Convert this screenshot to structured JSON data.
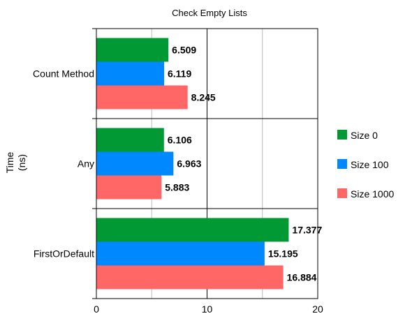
{
  "chart_data": {
    "type": "bar",
    "orientation": "horizontal",
    "title": "Check Empty Lists",
    "ylabel": "Time (ns)",
    "ylabel_lines": [
      "Time",
      "(ns)"
    ],
    "xlabel": "",
    "categories": [
      "Count Method",
      "Any",
      "FirstOrDefault"
    ],
    "series": [
      {
        "name": "Size 0",
        "color": "#009933",
        "values": [
          6.509,
          6.106,
          17.377
        ]
      },
      {
        "name": "Size 100",
        "color": "#0088ff",
        "values": [
          6.119,
          6.963,
          15.195
        ]
      },
      {
        "name": "Size 1000",
        "color": "#ff6666",
        "values": [
          8.245,
          5.883,
          16.884
        ]
      }
    ],
    "xlim": [
      0,
      20
    ],
    "major_ticks": [
      0,
      10,
      20
    ],
    "minor_gridlines": [
      5,
      15
    ],
    "grid": true,
    "legend_position": "right",
    "data_labels": true
  }
}
